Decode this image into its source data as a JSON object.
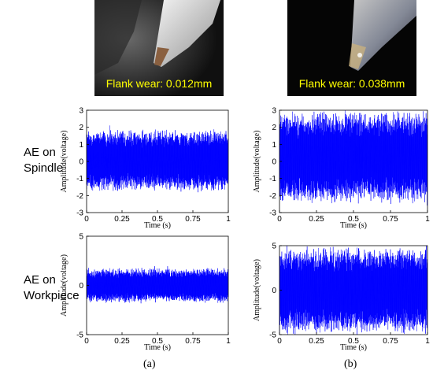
{
  "photos": [
    {
      "caption": "Flank wear: 0.012mm"
    },
    {
      "caption": "Flank wear: 0.038mm"
    }
  ],
  "row_labels": {
    "spindle": [
      "AE on",
      "Spindle"
    ],
    "workpiece": [
      "AE on",
      "Workpiece"
    ]
  },
  "subfigure_labels": [
    "(a)",
    "(b)"
  ],
  "chart_data": [
    {
      "type": "line",
      "panel": "a-spindle",
      "xlabel": "Time (s)",
      "ylabel": "Amplitude(voltage)",
      "xlim": [
        0,
        1
      ],
      "ylim": [
        -3,
        3
      ],
      "xticks": [
        "0",
        "0.25",
        "0.5",
        "0.75",
        "1"
      ],
      "yticks": [
        "-3",
        "-2",
        "-1",
        "0",
        "1",
        "2",
        "3"
      ],
      "signal_envelope": [
        -1.8,
        1.9
      ],
      "series_color": "#0000ff"
    },
    {
      "type": "line",
      "panel": "b-spindle",
      "xlabel": "Time (s)",
      "ylabel": "Amplitude(voltage)",
      "xlim": [
        0,
        1
      ],
      "ylim": [
        -3,
        3
      ],
      "xticks": [
        "0",
        "0.25",
        "0.5",
        "0.75",
        "1"
      ],
      "yticks": [
        "-3",
        "-2",
        "-1",
        "0",
        "1",
        "2",
        "3"
      ],
      "signal_envelope": [
        -2.5,
        3.0
      ],
      "series_color": "#0000ff"
    },
    {
      "type": "line",
      "panel": "a-workpiece",
      "xlabel": "Time (s)",
      "ylabel": "Amplitude(voltage)",
      "xlim": [
        0,
        1
      ],
      "ylim": [
        -5,
        5
      ],
      "xticks": [
        "0",
        "0.25",
        "0.5",
        "0.75",
        "1"
      ],
      "yticks": [
        "-5",
        "0",
        "5"
      ],
      "signal_envelope": [
        -1.8,
        1.8
      ],
      "series_color": "#0000ff"
    },
    {
      "type": "line",
      "panel": "b-workpiece",
      "xlabel": "Time (s)",
      "ylabel": "Amplitude(voltage)",
      "xlim": [
        0,
        1
      ],
      "ylim": [
        -5,
        5
      ],
      "xticks": [
        "0",
        "0.25",
        "0.5",
        "0.75",
        "1"
      ],
      "yticks": [
        "-5",
        "0",
        "5"
      ],
      "signal_envelope": [
        -5,
        5
      ],
      "series_color": "#0000ff"
    }
  ]
}
